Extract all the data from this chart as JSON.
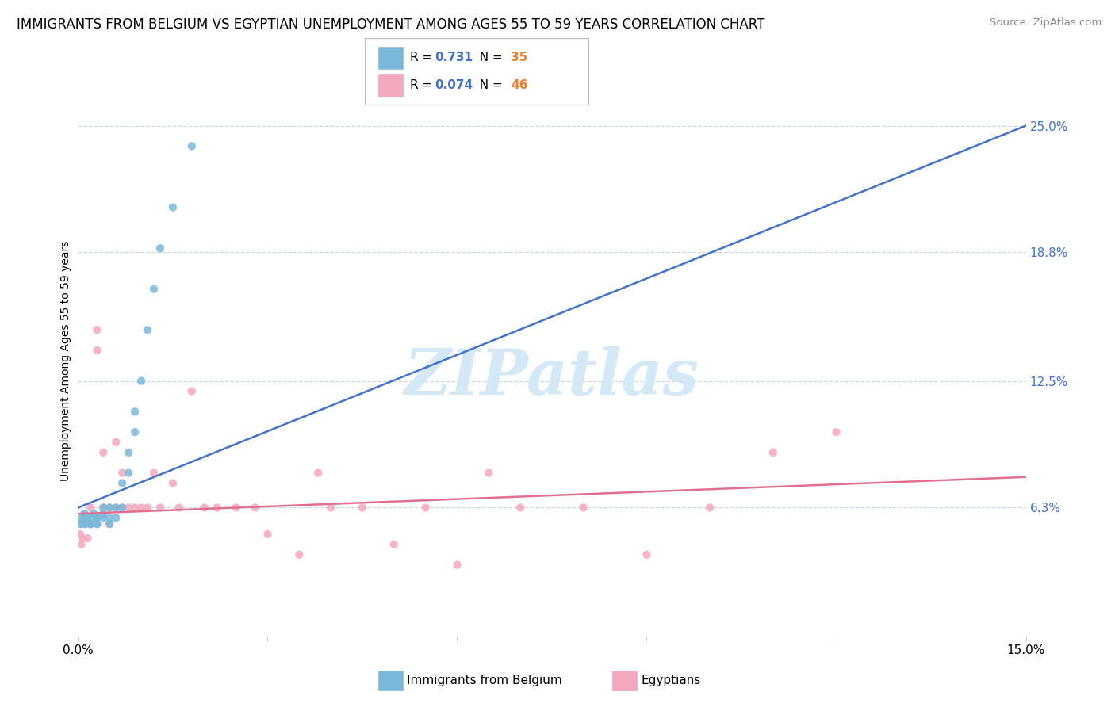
{
  "title": "IMMIGRANTS FROM BELGIUM VS EGYPTIAN UNEMPLOYMENT AMONG AGES 55 TO 59 YEARS CORRELATION CHART",
  "source": "Source: ZipAtlas.com",
  "ylabel": "Unemployment Among Ages 55 to 59 years",
  "xlim": [
    0.0,
    0.15
  ],
  "ylim": [
    0.0,
    0.27
  ],
  "ytick_labels_right": [
    "6.3%",
    "12.5%",
    "18.8%",
    "25.0%"
  ],
  "ytick_values_right": [
    0.063,
    0.125,
    0.188,
    0.25
  ],
  "blue_color": "#7ab8d9",
  "pink_color": "#f4a8be",
  "blue_label": "Immigrants from Belgium",
  "pink_label": "Egyptians",
  "blue_R": "0.731",
  "blue_N": "35",
  "pink_R": "0.074",
  "pink_N": "46",
  "blue_line_color": "#4472c4",
  "pink_line_color": "#e07090",
  "value_color": "#4472c4",
  "n_color": "#ed7d31",
  "watermark": "ZIPatlas",
  "watermark_color": "#d5e8f5",
  "grid_color": "#c8d8ea",
  "background_color": "#ffffff",
  "title_fontsize": 12,
  "tick_fontsize": 11,
  "blue_scatter_x": [
    0.0003,
    0.0005,
    0.0007,
    0.001,
    0.001,
    0.0012,
    0.0015,
    0.002,
    0.002,
    0.002,
    0.0025,
    0.003,
    0.003,
    0.003,
    0.003,
    0.004,
    0.004,
    0.004,
    0.005,
    0.005,
    0.005,
    0.006,
    0.006,
    0.007,
    0.007,
    0.008,
    0.008,
    0.009,
    0.009,
    0.01,
    0.011,
    0.012,
    0.013,
    0.015,
    0.018
  ],
  "blue_scatter_y": [
    0.055,
    0.058,
    0.055,
    0.058,
    0.06,
    0.055,
    0.058,
    0.058,
    0.055,
    0.055,
    0.06,
    0.058,
    0.055,
    0.055,
    0.058,
    0.06,
    0.063,
    0.058,
    0.063,
    0.058,
    0.055,
    0.063,
    0.058,
    0.063,
    0.075,
    0.08,
    0.09,
    0.1,
    0.11,
    0.125,
    0.15,
    0.17,
    0.19,
    0.21,
    0.24
  ],
  "pink_scatter_x": [
    0.0003,
    0.0005,
    0.0007,
    0.001,
    0.001,
    0.0015,
    0.002,
    0.002,
    0.003,
    0.003,
    0.004,
    0.004,
    0.005,
    0.005,
    0.006,
    0.006,
    0.007,
    0.007,
    0.008,
    0.009,
    0.01,
    0.011,
    0.012,
    0.013,
    0.015,
    0.016,
    0.018,
    0.02,
    0.022,
    0.025,
    0.028,
    0.03,
    0.035,
    0.038,
    0.04,
    0.045,
    0.05,
    0.055,
    0.06,
    0.065,
    0.07,
    0.08,
    0.09,
    0.1,
    0.11,
    0.12
  ],
  "pink_scatter_y": [
    0.05,
    0.045,
    0.048,
    0.055,
    0.06,
    0.048,
    0.063,
    0.055,
    0.14,
    0.15,
    0.063,
    0.09,
    0.063,
    0.055,
    0.063,
    0.095,
    0.063,
    0.08,
    0.063,
    0.063,
    0.063,
    0.063,
    0.08,
    0.063,
    0.075,
    0.063,
    0.12,
    0.063,
    0.063,
    0.063,
    0.063,
    0.05,
    0.04,
    0.08,
    0.063,
    0.063,
    0.045,
    0.063,
    0.035,
    0.08,
    0.063,
    0.063,
    0.04,
    0.063,
    0.09,
    0.1
  ]
}
